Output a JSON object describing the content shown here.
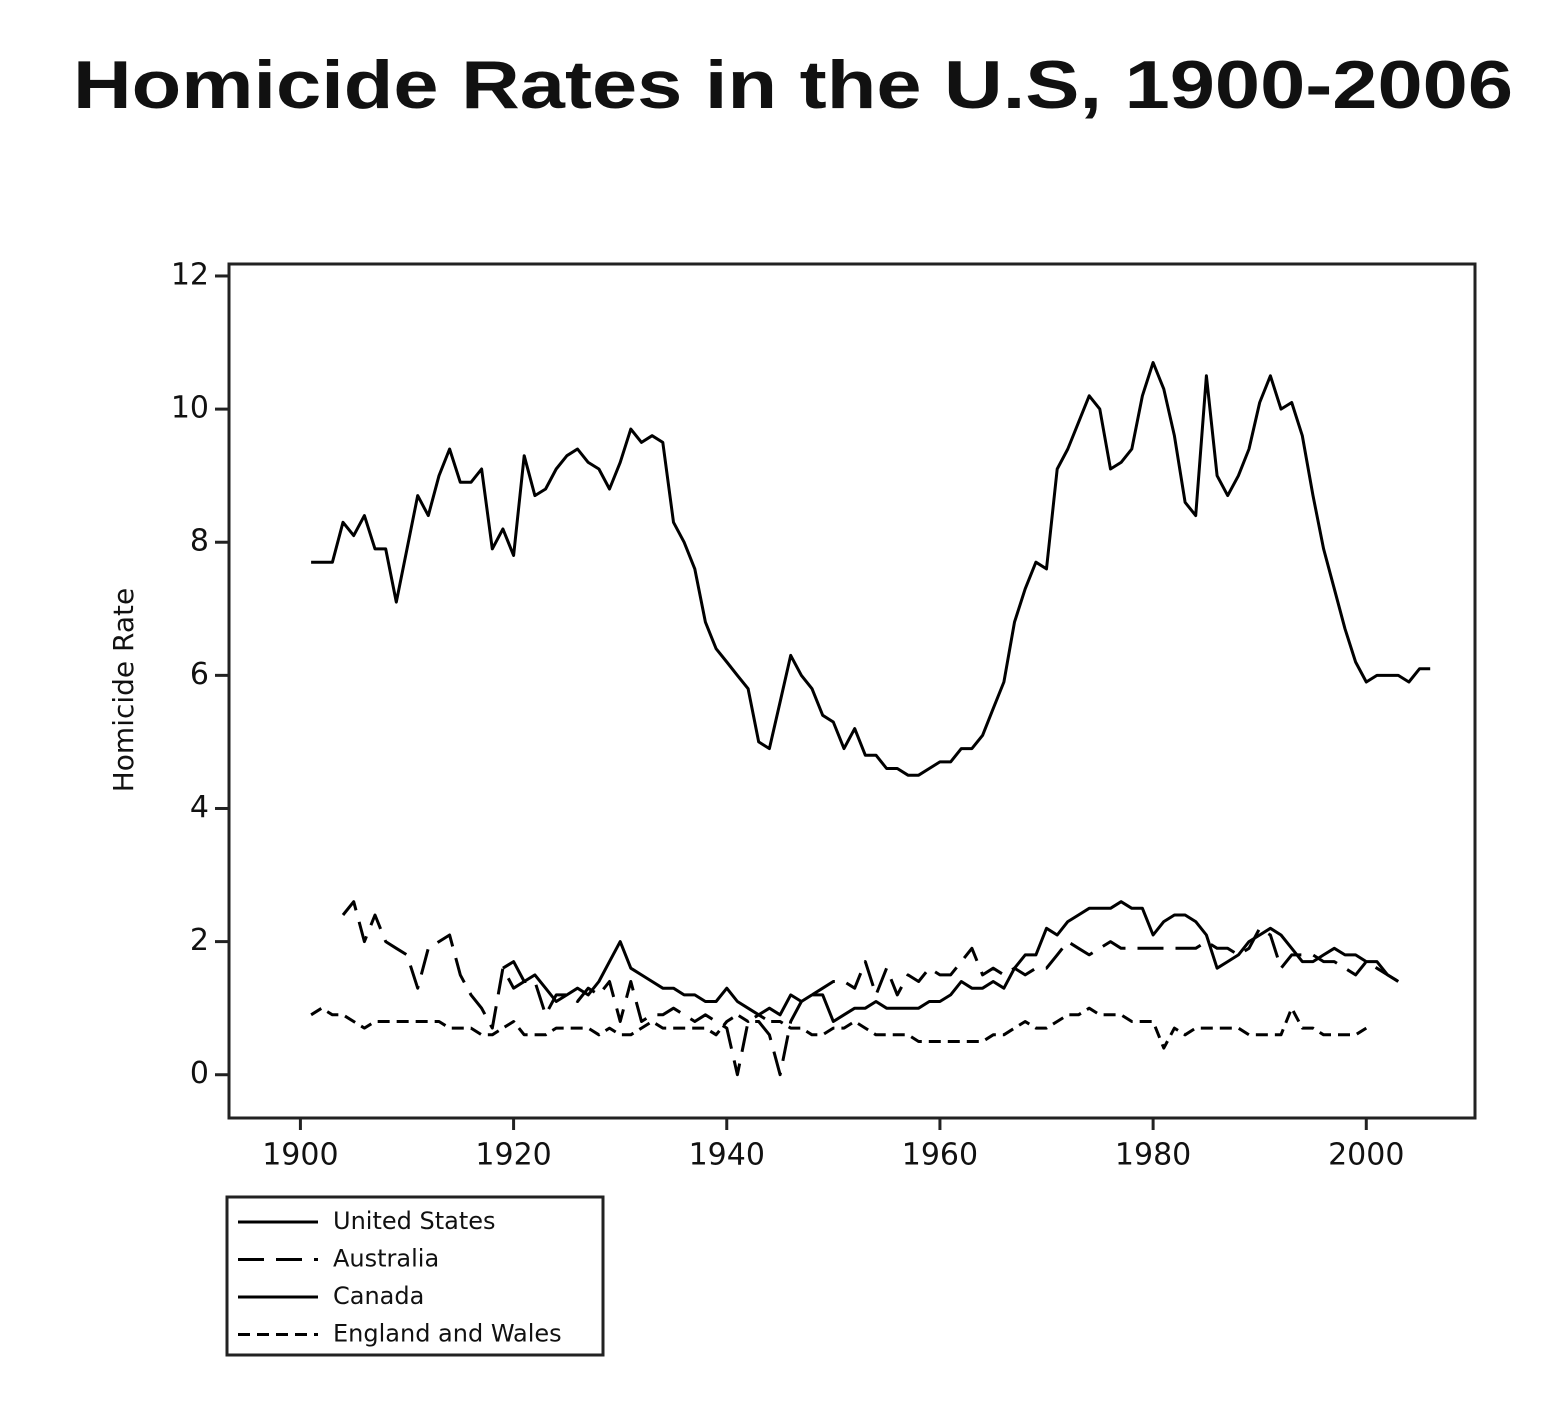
{
  "chart_data": {
    "type": "line",
    "title": "Homicide Rates in the U.S, 1900-2006",
    "y_label": "Homicide Rate",
    "x": [
      1901,
      1902,
      1903,
      1904,
      1905,
      1906,
      1907,
      1908,
      1909,
      1910,
      1911,
      1912,
      1913,
      1914,
      1915,
      1916,
      1917,
      1918,
      1919,
      1920,
      1921,
      1922,
      1923,
      1924,
      1925,
      1926,
      1927,
      1928,
      1929,
      1930,
      1931,
      1932,
      1933,
      1934,
      1935,
      1936,
      1937,
      1938,
      1939,
      1940,
      1941,
      1942,
      1943,
      1944,
      1945,
      1946,
      1947,
      1948,
      1949,
      1950,
      1951,
      1952,
      1953,
      1954,
      1955,
      1956,
      1957,
      1958,
      1959,
      1960,
      1961,
      1962,
      1963,
      1964,
      1965,
      1966,
      1967,
      1968,
      1969,
      1970,
      1971,
      1972,
      1973,
      1974,
      1975,
      1976,
      1977,
      1978,
      1979,
      1980,
      1981,
      1982,
      1983,
      1984,
      1985,
      1986,
      1987,
      1988,
      1989,
      1990,
      1991,
      1992,
      1993,
      1994,
      1995,
      1996,
      1997,
      1998,
      1999,
      2000,
      2001,
      2002,
      2003,
      2004,
      2005,
      2006
    ],
    "series": [
      {
        "name": "United States",
        "color": "#000000",
        "line_style": "solid",
        "values": [
          7.7,
          7.7,
          7.7,
          8.3,
          8.1,
          8.4,
          7.9,
          7.9,
          7.1,
          7.9,
          8.7,
          8.4,
          9.0,
          9.4,
          8.9,
          8.9,
          9.1,
          7.9,
          8.2,
          7.8,
          9.3,
          8.7,
          8.8,
          9.1,
          9.3,
          9.4,
          9.2,
          9.1,
          8.8,
          9.2,
          9.7,
          9.5,
          9.6,
          9.5,
          8.3,
          8.0,
          7.6,
          6.8,
          6.4,
          6.2,
          6.0,
          5.8,
          5.0,
          4.9,
          5.6,
          6.3,
          6.0,
          5.8,
          5.4,
          5.3,
          4.9,
          5.2,
          4.8,
          4.8,
          4.6,
          4.6,
          4.5,
          4.5,
          4.6,
          4.7,
          4.7,
          4.9,
          4.9,
          5.1,
          5.5,
          5.9,
          6.8,
          7.3,
          7.7,
          7.6,
          9.1,
          9.4,
          9.8,
          10.2,
          10.0,
          9.1,
          9.2,
          9.4,
          10.2,
          10.7,
          10.3,
          9.6,
          8.6,
          8.4,
          10.5,
          9.0,
          8.7,
          9.0,
          9.4,
          10.1,
          10.5,
          10.0,
          10.1,
          9.6,
          8.7,
          7.9,
          7.3,
          6.7,
          6.2,
          5.9,
          6.0,
          6.0,
          6.0,
          5.9,
          6.1,
          6.1
        ]
      },
      {
        "name": "Australia",
        "color": "#000000",
        "line_style": "long-dash",
        "values": [
          null,
          null,
          null,
          2.4,
          2.6,
          2.0,
          2.4,
          2.0,
          1.9,
          1.8,
          1.3,
          1.9,
          2.0,
          2.1,
          1.5,
          1.2,
          1.0,
          0.7,
          1.6,
          1.3,
          1.4,
          1.4,
          0.9,
          1.2,
          1.2,
          1.1,
          1.3,
          1.2,
          1.4,
          0.8,
          1.4,
          0.8,
          0.9,
          0.9,
          1.0,
          0.9,
          0.8,
          0.9,
          0.8,
          0.7,
          0.0,
          0.8,
          0.8,
          0.6,
          0.0,
          0.8,
          1.1,
          1.2,
          1.3,
          1.4,
          1.4,
          1.3,
          1.7,
          1.2,
          1.6,
          1.2,
          1.5,
          1.4,
          1.6,
          1.5,
          1.5,
          1.7,
          1.9,
          1.5,
          1.6,
          1.5,
          1.6,
          1.5,
          1.6,
          1.6,
          1.8,
          2.0,
          1.9,
          1.8,
          1.9,
          2.0,
          1.9,
          1.9,
          1.9,
          1.9,
          1.9,
          1.9,
          1.9,
          1.9,
          2.0,
          1.9,
          1.9,
          1.8,
          1.9,
          2.2,
          2.1,
          1.6,
          1.8,
          1.8,
          1.8,
          1.7,
          1.7,
          1.6,
          1.5,
          1.7,
          1.6,
          1.5,
          1.4,
          null,
          null,
          null
        ]
      },
      {
        "name": "Canada",
        "color": "#000000",
        "line_style": "solid",
        "values": [
          null,
          null,
          null,
          null,
          null,
          null,
          null,
          null,
          null,
          null,
          null,
          null,
          null,
          null,
          null,
          null,
          null,
          null,
          1.6,
          1.7,
          1.4,
          1.5,
          1.3,
          1.1,
          1.2,
          1.3,
          1.2,
          1.4,
          1.7,
          2.0,
          1.6,
          1.5,
          1.4,
          1.3,
          1.3,
          1.2,
          1.2,
          1.1,
          1.1,
          1.3,
          1.1,
          1.0,
          0.9,
          1.0,
          0.9,
          1.2,
          1.1,
          1.2,
          1.2,
          0.8,
          0.9,
          1.0,
          1.0,
          1.1,
          1.0,
          1.0,
          1.0,
          1.0,
          1.1,
          1.1,
          1.2,
          1.4,
          1.3,
          1.3,
          1.4,
          1.3,
          1.6,
          1.8,
          1.8,
          2.2,
          2.1,
          2.3,
          2.4,
          2.5,
          2.5,
          2.5,
          2.6,
          2.5,
          2.5,
          2.1,
          2.3,
          2.4,
          2.4,
          2.3,
          2.1,
          1.6,
          1.7,
          1.8,
          2.0,
          2.1,
          2.2,
          2.1,
          1.9,
          1.7,
          1.7,
          1.8,
          1.9,
          1.8,
          1.8,
          1.7,
          1.7,
          1.5,
          1.4,
          null,
          null,
          null
        ]
      },
      {
        "name": "England and Wales",
        "color": "#000000",
        "line_style": "dash",
        "values": [
          0.9,
          1.0,
          0.9,
          0.9,
          0.8,
          0.7,
          0.8,
          0.8,
          0.8,
          0.8,
          0.8,
          0.8,
          0.8,
          0.7,
          0.7,
          0.7,
          0.6,
          0.6,
          0.7,
          0.8,
          0.6,
          0.6,
          0.6,
          0.7,
          0.7,
          0.7,
          0.7,
          0.6,
          0.7,
          0.6,
          0.6,
          0.7,
          0.8,
          0.7,
          0.7,
          0.7,
          0.7,
          0.7,
          0.6,
          0.8,
          0.9,
          0.8,
          0.9,
          0.8,
          0.8,
          0.7,
          0.7,
          0.6,
          0.6,
          0.7,
          0.7,
          0.8,
          0.7,
          0.6,
          0.6,
          0.6,
          0.6,
          0.5,
          0.5,
          0.5,
          0.5,
          0.5,
          0.5,
          0.5,
          0.6,
          0.6,
          0.7,
          0.8,
          0.7,
          0.7,
          0.8,
          0.9,
          0.9,
          1.0,
          0.9,
          0.9,
          0.9,
          0.8,
          0.8,
          0.8,
          0.4,
          0.7,
          0.6,
          0.7,
          0.7,
          0.7,
          0.7,
          0.7,
          0.6,
          0.6,
          0.6,
          0.6,
          1.0,
          0.7,
          0.7,
          0.6,
          0.6,
          0.6,
          0.6,
          0.7,
          null,
          null,
          null,
          null,
          null,
          null
        ]
      }
    ],
    "xlim": [
      1893.3,
      2010.2
    ],
    "xticks": [
      1900,
      1920,
      1940,
      1960,
      1980,
      2000
    ],
    "ylim": [
      -0.65,
      12.18
    ],
    "yticks": [
      0,
      2,
      4,
      6,
      8,
      10,
      12
    ],
    "grid": false,
    "legend": "bottom-left"
  }
}
